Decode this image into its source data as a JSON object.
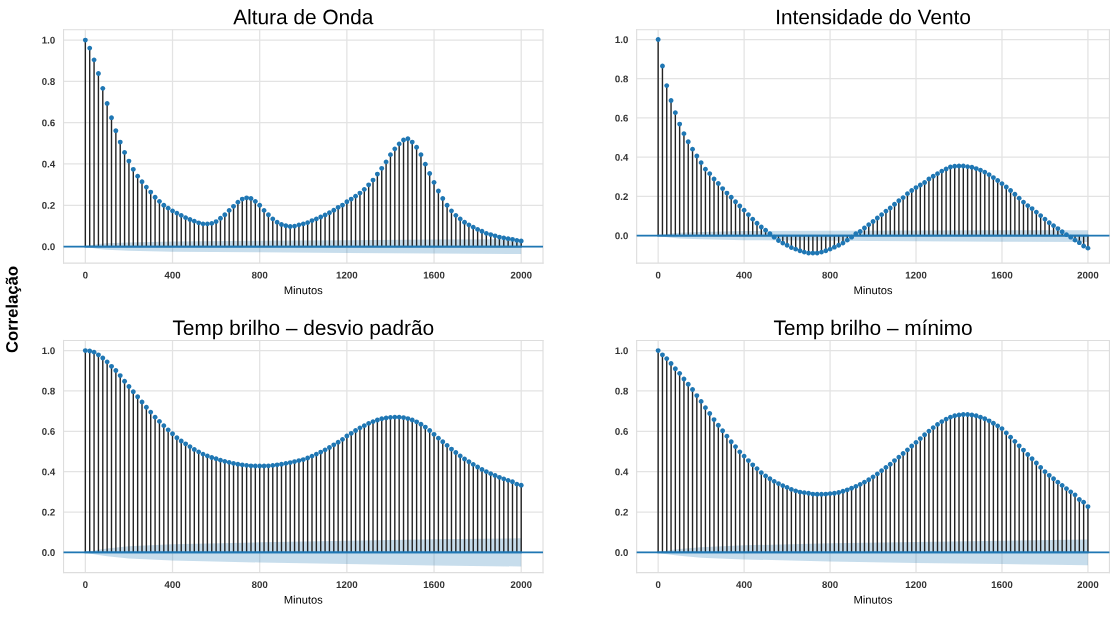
{
  "chart_data": [
    {
      "type": "lollipop",
      "title": "Altura de Onda",
      "xlabel": "Minutos",
      "ylabel": "Correlação",
      "xlim": [
        -100,
        2100
      ],
      "ylim": [
        -0.08,
        1.05
      ],
      "xticks": [
        0,
        400,
        800,
        1200,
        1600,
        2000
      ],
      "yticks": [
        {
          "value": 0,
          "label": "0.0"
        },
        {
          "value": 0.2,
          "label": "0.2"
        },
        {
          "value": 0.4,
          "label": "0.4"
        },
        {
          "value": 0.6,
          "label": "0.6"
        },
        {
          "value": 0.8,
          "label": "0.8"
        },
        {
          "value": 1,
          "label": "1.0"
        }
      ],
      "grid": true,
      "marker": "circle",
      "ref_lines": [
        {
          "axis": "y",
          "value": 0,
          "color": "#1f77b4"
        }
      ],
      "series": [
        {
          "color": "#1f77b4",
          "x": [
            0,
            20,
            40,
            60,
            80,
            100,
            120,
            140,
            160,
            180,
            200,
            220,
            240,
            260,
            280,
            300,
            320,
            340,
            360,
            380,
            400,
            420,
            440,
            460,
            480,
            500,
            520,
            540,
            560,
            580,
            600,
            620,
            640,
            660,
            680,
            700,
            720,
            740,
            760,
            780,
            800,
            820,
            840,
            860,
            880,
            900,
            920,
            940,
            960,
            980,
            1000,
            1020,
            1040,
            1060,
            1080,
            1100,
            1120,
            1140,
            1160,
            1180,
            1200,
            1220,
            1240,
            1260,
            1280,
            1300,
            1320,
            1340,
            1360,
            1380,
            1400,
            1420,
            1440,
            1460,
            1480,
            1500,
            1520,
            1540,
            1560,
            1580,
            1600,
            1620,
            1640,
            1660,
            1680,
            1700,
            1720,
            1740,
            1760,
            1780,
            1800,
            1820,
            1840,
            1860,
            1880,
            1900,
            1920,
            1940,
            1960,
            1980,
            2000
          ],
          "values": [
            1.0,
            0.961,
            0.904,
            0.838,
            0.766,
            0.693,
            0.624,
            0.561,
            0.506,
            0.456,
            0.414,
            0.374,
            0.341,
            0.314,
            0.288,
            0.264,
            0.239,
            0.219,
            0.2,
            0.186,
            0.173,
            0.162,
            0.151,
            0.14,
            0.131,
            0.123,
            0.115,
            0.11,
            0.11,
            0.112,
            0.121,
            0.137,
            0.154,
            0.175,
            0.195,
            0.215,
            0.23,
            0.236,
            0.233,
            0.219,
            0.2,
            0.175,
            0.154,
            0.134,
            0.118,
            0.107,
            0.101,
            0.097,
            0.099,
            0.105,
            0.11,
            0.116,
            0.126,
            0.134,
            0.143,
            0.153,
            0.164,
            0.176,
            0.19,
            0.201,
            0.217,
            0.23,
            0.244,
            0.259,
            0.277,
            0.299,
            0.322,
            0.351,
            0.379,
            0.41,
            0.445,
            0.473,
            0.497,
            0.516,
            0.522,
            0.506,
            0.481,
            0.445,
            0.399,
            0.354,
            0.311,
            0.269,
            0.233,
            0.2,
            0.173,
            0.151,
            0.134,
            0.118,
            0.105,
            0.094,
            0.083,
            0.074,
            0.064,
            0.058,
            0.052,
            0.046,
            0.042,
            0.038,
            0.035,
            0.03,
            0.027
          ]
        },
        {
          "type": "line",
          "color": "#1f77b4",
          "x": [
            0,
            20,
            60,
            100,
            200,
            400,
            800,
            1200,
            1600,
            2000
          ],
          "values": [
            0,
            0,
            0,
            0,
            0,
            0,
            0,
            0,
            0,
            0
          ],
          "marker": "none",
          "lower": [
            0,
            -0.005,
            -0.012,
            -0.016,
            -0.02,
            -0.025,
            -0.028,
            -0.031,
            -0.034,
            -0.036
          ],
          "upper": [
            0,
            0.005,
            0.012,
            0.016,
            0.02,
            0.025,
            0.028,
            0.031,
            0.034,
            0.036
          ]
        }
      ]
    },
    {
      "type": "lollipop",
      "title": "Intensidade do Vento",
      "xlabel": "Minutos",
      "xlim": [
        -100,
        2100
      ],
      "ylim": [
        -0.14,
        1.05
      ],
      "xticks": [
        0,
        400,
        800,
        1200,
        1600,
        2000
      ],
      "yticks": [
        {
          "value": 0,
          "label": "0.0"
        },
        {
          "value": 0.2,
          "label": "0.2"
        },
        {
          "value": 0.4,
          "label": "0.4"
        },
        {
          "value": 0.6,
          "label": "0.6"
        },
        {
          "value": 0.8,
          "label": "0.8"
        },
        {
          "value": 1,
          "label": "1.0"
        }
      ],
      "grid": true,
      "marker": "circle",
      "ref_lines": [
        {
          "axis": "y",
          "value": 0,
          "color": "#1f77b4"
        }
      ],
      "series": [
        {
          "color": "#1f77b4",
          "x": [
            0,
            20,
            40,
            60,
            80,
            100,
            120,
            140,
            160,
            180,
            200,
            220,
            240,
            260,
            280,
            300,
            320,
            340,
            360,
            380,
            400,
            420,
            440,
            460,
            480,
            500,
            520,
            540,
            560,
            580,
            600,
            620,
            640,
            660,
            680,
            700,
            720,
            740,
            760,
            780,
            800,
            820,
            840,
            860,
            880,
            900,
            920,
            940,
            960,
            980,
            1000,
            1020,
            1040,
            1060,
            1080,
            1100,
            1120,
            1140,
            1160,
            1180,
            1200,
            1220,
            1240,
            1260,
            1280,
            1300,
            1320,
            1340,
            1360,
            1380,
            1400,
            1420,
            1440,
            1460,
            1480,
            1500,
            1520,
            1540,
            1560,
            1580,
            1600,
            1620,
            1640,
            1660,
            1680,
            1700,
            1720,
            1740,
            1760,
            1780,
            1800,
            1820,
            1840,
            1860,
            1880,
            1900,
            1920,
            1940,
            1960,
            1980,
            2000
          ],
          "values": [
            1.0,
            0.865,
            0.765,
            0.689,
            0.627,
            0.569,
            0.52,
            0.479,
            0.441,
            0.406,
            0.372,
            0.339,
            0.316,
            0.289,
            0.266,
            0.24,
            0.217,
            0.196,
            0.173,
            0.151,
            0.13,
            0.107,
            0.084,
            0.063,
            0.044,
            0.028,
            0.01,
            -0.008,
            -0.025,
            -0.038,
            -0.049,
            -0.061,
            -0.069,
            -0.077,
            -0.084,
            -0.089,
            -0.089,
            -0.089,
            -0.084,
            -0.077,
            -0.069,
            -0.059,
            -0.049,
            -0.038,
            -0.023,
            -0.008,
            0.01,
            0.021,
            0.039,
            0.056,
            0.072,
            0.09,
            0.107,
            0.125,
            0.141,
            0.16,
            0.178,
            0.194,
            0.214,
            0.23,
            0.245,
            0.258,
            0.271,
            0.289,
            0.303,
            0.316,
            0.329,
            0.34,
            0.35,
            0.354,
            0.355,
            0.355,
            0.352,
            0.349,
            0.342,
            0.334,
            0.324,
            0.311,
            0.296,
            0.281,
            0.265,
            0.248,
            0.23,
            0.211,
            0.191,
            0.171,
            0.153,
            0.138,
            0.12,
            0.102,
            0.084,
            0.066,
            0.051,
            0.036,
            0.02,
            0.005,
            -0.008,
            -0.023,
            -0.036,
            -0.053,
            -0.064
          ]
        },
        {
          "type": "line",
          "color": "#1f77b4",
          "x": [
            0,
            20,
            60,
            100,
            200,
            400,
            800,
            1200,
            1600,
            2000
          ],
          "values": [
            0,
            0,
            0,
            0,
            0,
            0,
            0,
            0,
            0,
            0
          ],
          "marker": "none",
          "lower": [
            0,
            -0.005,
            -0.011,
            -0.015,
            -0.019,
            -0.023,
            -0.026,
            -0.029,
            -0.031,
            -0.033
          ],
          "upper": [
            0,
            0.005,
            0.011,
            0.015,
            0.019,
            0.023,
            0.025,
            0.026,
            0.027,
            0.028
          ]
        }
      ]
    },
    {
      "type": "lollipop",
      "title": "Temp brilho – desvio padrão",
      "xlabel": "Minutos",
      "xlim": [
        -100,
        2100
      ],
      "ylim": [
        -0.1,
        1.05
      ],
      "xticks": [
        0,
        400,
        800,
        1200,
        1600,
        2000
      ],
      "yticks": [
        {
          "value": 0,
          "label": "0.0"
        },
        {
          "value": 0.2,
          "label": "0.2"
        },
        {
          "value": 0.4,
          "label": "0.4"
        },
        {
          "value": 0.6,
          "label": "0.6"
        },
        {
          "value": 0.8,
          "label": "0.8"
        },
        {
          "value": 1,
          "label": "1.0"
        }
      ],
      "grid": true,
      "marker": "circle",
      "ref_lines": [
        {
          "axis": "y",
          "value": 0,
          "color": "#1f77b4"
        }
      ],
      "series": [
        {
          "color": "#1f77b4",
          "x": [
            0,
            20,
            40,
            60,
            80,
            100,
            120,
            140,
            160,
            180,
            200,
            220,
            240,
            260,
            280,
            300,
            320,
            340,
            360,
            380,
            400,
            420,
            440,
            460,
            480,
            500,
            520,
            540,
            560,
            580,
            600,
            620,
            640,
            660,
            680,
            700,
            720,
            740,
            760,
            780,
            800,
            820,
            840,
            860,
            880,
            900,
            920,
            940,
            960,
            980,
            1000,
            1020,
            1040,
            1060,
            1080,
            1100,
            1120,
            1140,
            1160,
            1180,
            1200,
            1220,
            1240,
            1260,
            1280,
            1300,
            1320,
            1340,
            1360,
            1380,
            1400,
            1420,
            1440,
            1460,
            1480,
            1500,
            1520,
            1540,
            1560,
            1580,
            1600,
            1620,
            1640,
            1660,
            1680,
            1700,
            1720,
            1740,
            1760,
            1780,
            1800,
            1820,
            1840,
            1860,
            1880,
            1900,
            1920,
            1940,
            1960,
            1980,
            2000
          ],
          "values": [
            1.0,
            0.998,
            0.992,
            0.979,
            0.963,
            0.944,
            0.922,
            0.901,
            0.876,
            0.848,
            0.822,
            0.796,
            0.771,
            0.745,
            0.719,
            0.695,
            0.67,
            0.649,
            0.628,
            0.607,
            0.588,
            0.568,
            0.552,
            0.538,
            0.524,
            0.51,
            0.498,
            0.487,
            0.478,
            0.47,
            0.464,
            0.457,
            0.451,
            0.446,
            0.441,
            0.437,
            0.434,
            0.431,
            0.429,
            0.428,
            0.428,
            0.428,
            0.429,
            0.431,
            0.434,
            0.437,
            0.441,
            0.445,
            0.45,
            0.455,
            0.46,
            0.468,
            0.477,
            0.487,
            0.497,
            0.508,
            0.52,
            0.533,
            0.546,
            0.56,
            0.577,
            0.59,
            0.604,
            0.617,
            0.628,
            0.639,
            0.648,
            0.656,
            0.662,
            0.666,
            0.669,
            0.67,
            0.67,
            0.668,
            0.663,
            0.656,
            0.647,
            0.635,
            0.621,
            0.604,
            0.585,
            0.566,
            0.548,
            0.53,
            0.512,
            0.495,
            0.478,
            0.463,
            0.449,
            0.436,
            0.423,
            0.411,
            0.4,
            0.39,
            0.381,
            0.372,
            0.364,
            0.357,
            0.35,
            0.338,
            0.333
          ]
        },
        {
          "type": "line",
          "color": "#1f77b4",
          "x": [
            0,
            20,
            60,
            100,
            200,
            400,
            800,
            1200,
            1600,
            2000
          ],
          "values": [
            0,
            0,
            0,
            0,
            0,
            0,
            0,
            0,
            0,
            0
          ],
          "marker": "none",
          "lower": [
            0,
            -0.005,
            -0.013,
            -0.019,
            -0.03,
            -0.04,
            -0.05,
            -0.058,
            -0.065,
            -0.07
          ],
          "upper": [
            0,
            0.005,
            0.013,
            0.019,
            0.03,
            0.04,
            0.05,
            0.058,
            0.065,
            0.07
          ]
        }
      ]
    },
    {
      "type": "lollipop",
      "title": "Temp brilho – mínimo",
      "xlabel": "Minutos",
      "xlim": [
        -100,
        2100
      ],
      "ylim": [
        -0.1,
        1.05
      ],
      "xticks": [
        0,
        400,
        800,
        1200,
        1600,
        2000
      ],
      "yticks": [
        {
          "value": 0,
          "label": "0.0"
        },
        {
          "value": 0.2,
          "label": "0.2"
        },
        {
          "value": 0.4,
          "label": "0.4"
        },
        {
          "value": 0.6,
          "label": "0.6"
        },
        {
          "value": 0.8,
          "label": "0.8"
        },
        {
          "value": 1,
          "label": "1.0"
        }
      ],
      "grid": true,
      "marker": "circle",
      "ref_lines": [
        {
          "axis": "y",
          "value": 0,
          "color": "#1f77b4"
        }
      ],
      "series": [
        {
          "color": "#1f77b4",
          "x": [
            0,
            20,
            40,
            60,
            80,
            100,
            120,
            140,
            160,
            180,
            200,
            220,
            240,
            260,
            280,
            300,
            320,
            340,
            360,
            380,
            400,
            420,
            440,
            460,
            480,
            500,
            520,
            540,
            560,
            580,
            600,
            620,
            640,
            660,
            680,
            700,
            720,
            740,
            760,
            780,
            800,
            820,
            840,
            860,
            880,
            900,
            920,
            940,
            960,
            980,
            1000,
            1020,
            1040,
            1060,
            1080,
            1100,
            1120,
            1140,
            1160,
            1180,
            1200,
            1220,
            1240,
            1260,
            1280,
            1300,
            1320,
            1340,
            1360,
            1380,
            1400,
            1420,
            1440,
            1460,
            1480,
            1500,
            1520,
            1540,
            1560,
            1580,
            1600,
            1620,
            1640,
            1660,
            1680,
            1700,
            1720,
            1740,
            1760,
            1780,
            1800,
            1820,
            1840,
            1860,
            1880,
            1900,
            1920,
            1940,
            1960,
            1980,
            2000
          ],
          "values": [
            1.0,
            0.979,
            0.96,
            0.936,
            0.91,
            0.887,
            0.859,
            0.833,
            0.807,
            0.777,
            0.748,
            0.717,
            0.688,
            0.658,
            0.63,
            0.603,
            0.576,
            0.548,
            0.524,
            0.498,
            0.477,
            0.455,
            0.434,
            0.415,
            0.395,
            0.379,
            0.365,
            0.352,
            0.341,
            0.331,
            0.322,
            0.312,
            0.305,
            0.299,
            0.296,
            0.293,
            0.289,
            0.288,
            0.288,
            0.289,
            0.291,
            0.293,
            0.297,
            0.303,
            0.31,
            0.318,
            0.327,
            0.337,
            0.348,
            0.36,
            0.374,
            0.389,
            0.405,
            0.421,
            0.437,
            0.455,
            0.472,
            0.49,
            0.508,
            0.527,
            0.545,
            0.564,
            0.583,
            0.601,
            0.618,
            0.634,
            0.648,
            0.66,
            0.67,
            0.677,
            0.681,
            0.683,
            0.683,
            0.681,
            0.677,
            0.67,
            0.662,
            0.652,
            0.64,
            0.627,
            0.613,
            0.592,
            0.571,
            0.55,
            0.528,
            0.507,
            0.485,
            0.464,
            0.443,
            0.421,
            0.4,
            0.382,
            0.365,
            0.348,
            0.332,
            0.316,
            0.3,
            0.285,
            0.262,
            0.249,
            0.227
          ]
        },
        {
          "type": "line",
          "color": "#1f77b4",
          "x": [
            0,
            20,
            60,
            100,
            200,
            400,
            800,
            1200,
            1600,
            2000
          ],
          "values": [
            0,
            0,
            0,
            0,
            0,
            0,
            0,
            0,
            0,
            0
          ],
          "marker": "none",
          "lower": [
            0,
            -0.005,
            -0.012,
            -0.017,
            -0.026,
            -0.035,
            -0.045,
            -0.052,
            -0.058,
            -0.064
          ],
          "upper": [
            0,
            0.005,
            0.012,
            0.017,
            0.026,
            0.035,
            0.045,
            0.052,
            0.058,
            0.064
          ]
        }
      ]
    }
  ]
}
